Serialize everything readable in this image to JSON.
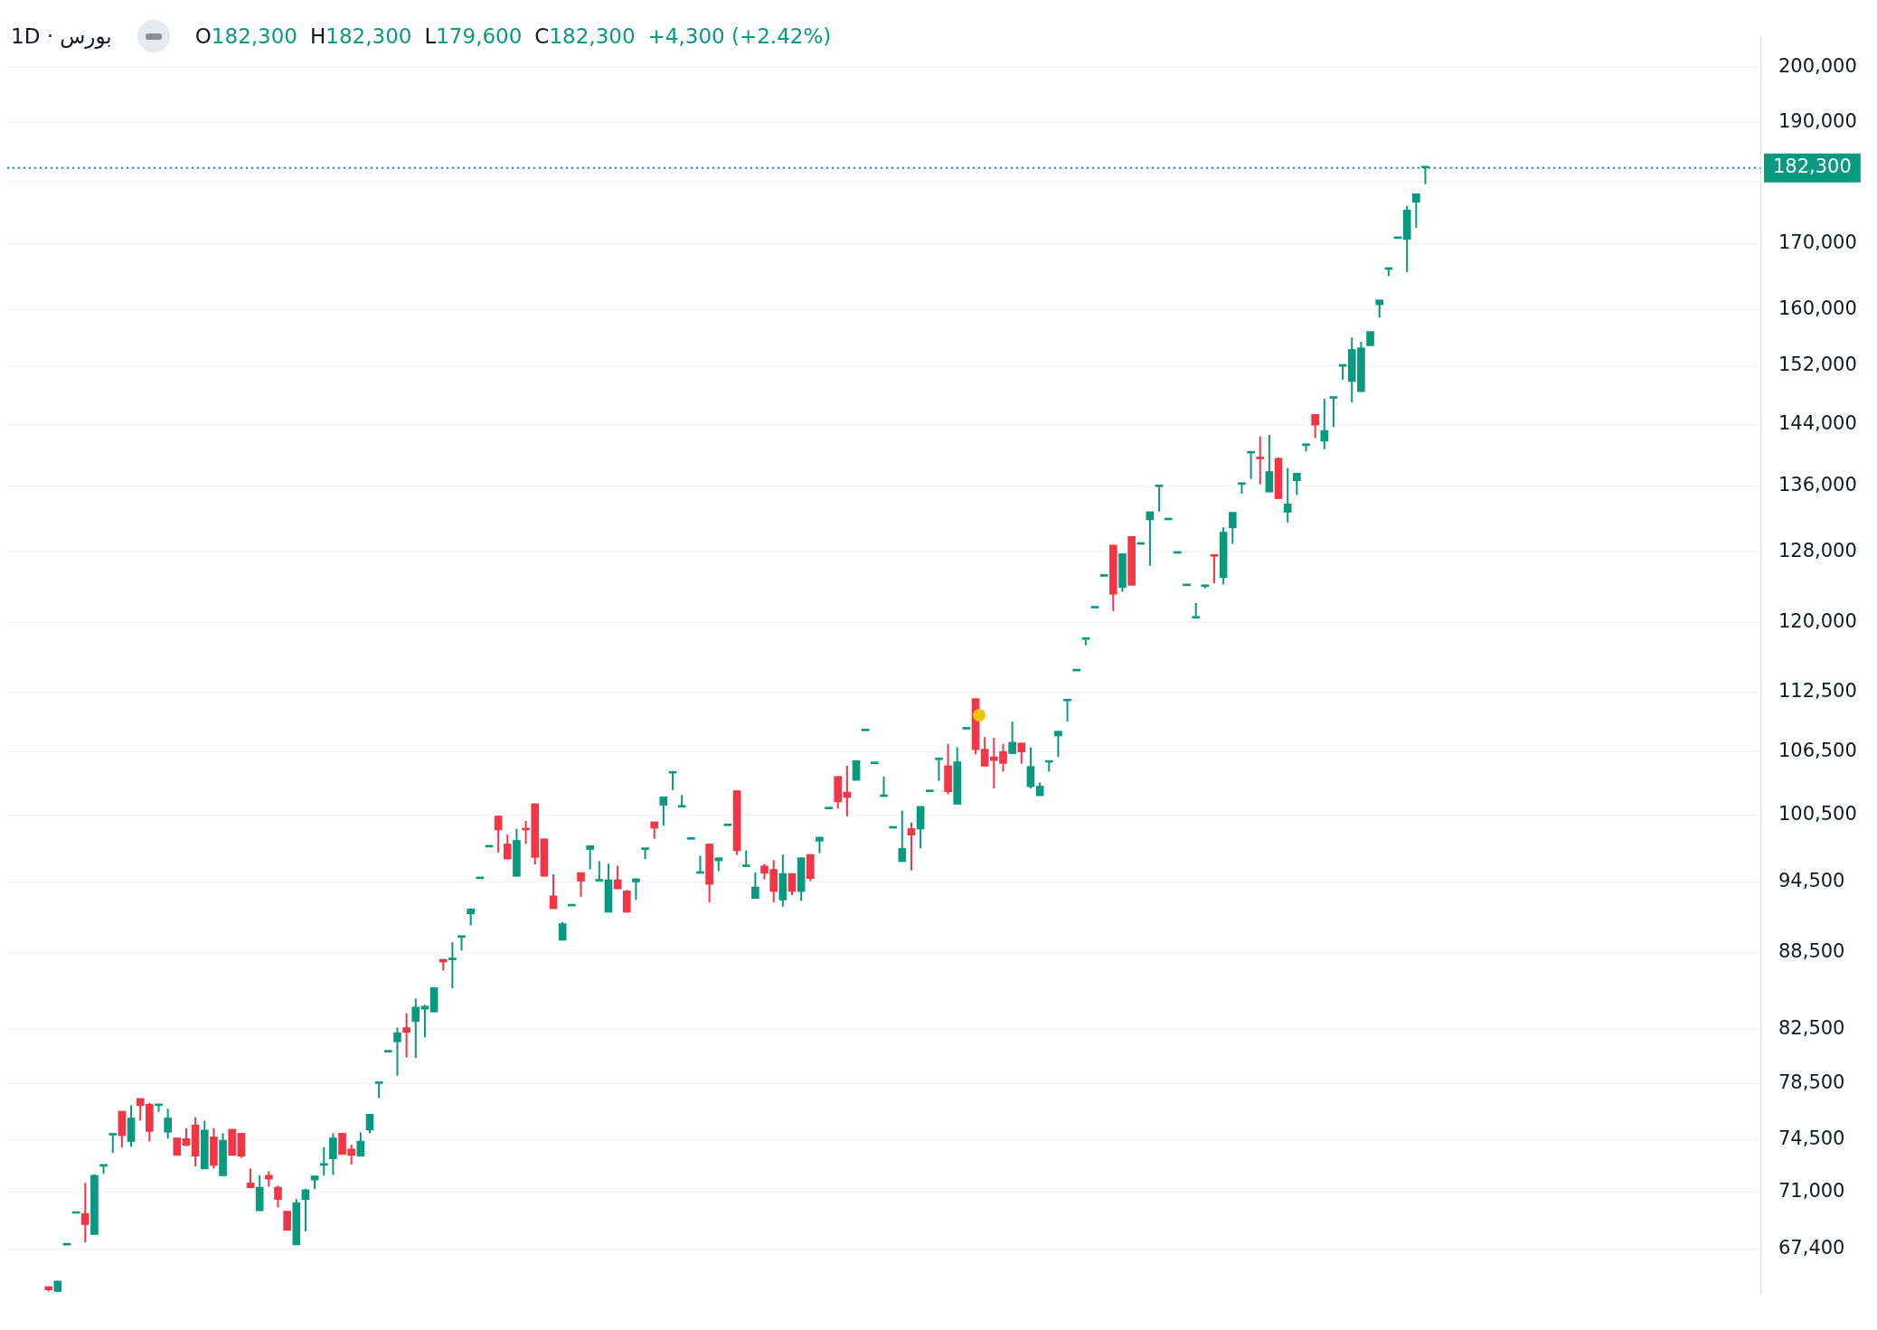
{
  "chart_data": {
    "type": "candlestick",
    "title": "بورس · 1D",
    "annotations": [
      "O182,300",
      "H182,300",
      "L179,600",
      "C182,300",
      "+4,300 (+2.42%)"
    ],
    "categories": [
      null,
      null,
      null,
      null,
      null,
      null,
      null,
      null,
      null,
      null,
      null,
      null,
      null,
      null,
      null,
      null,
      null,
      null,
      null,
      null,
      null,
      null,
      null,
      null,
      null,
      null,
      null,
      null,
      null,
      null,
      null,
      null,
      null,
      null,
      null,
      null,
      null,
      null,
      null,
      null,
      null,
      null,
      null,
      null,
      null,
      null,
      null,
      null,
      null,
      null,
      null,
      null,
      null,
      null,
      null,
      null,
      null,
      null,
      null,
      null,
      null,
      null,
      null,
      null,
      null,
      null,
      null,
      null,
      null,
      null,
      null,
      null,
      null,
      null,
      null,
      null,
      null,
      null,
      null,
      null,
      null,
      null,
      null,
      null,
      null,
      null,
      null,
      null,
      null,
      null,
      null,
      null,
      null,
      null,
      null,
      null,
      null,
      null,
      null,
      null,
      null,
      null,
      null,
      null,
      null,
      null,
      null,
      null,
      null,
      null,
      null,
      null,
      null,
      null,
      null,
      null,
      null,
      null,
      null,
      null,
      null,
      null,
      null,
      null,
      null,
      null,
      null,
      null,
      null,
      null,
      null,
      null,
      null,
      null,
      null,
      null,
      null,
      null,
      null,
      null,
      null,
      null,
      null,
      null,
      null,
      null,
      null,
      null,
      null,
      null,
      null,
      null,
      null,
      null,
      null,
      null,
      null,
      null,
      null,
      null,
      null,
      null,
      null,
      null,
      null,
      null,
      null,
      null,
      null,
      null,
      null,
      null,
      null,
      null,
      null,
      null,
      null,
      null,
      null,
      null,
      null,
      null,
      null,
      null,
      null,
      null,
      null,
      null,
      null,
      null,
      null
    ],
    "ohlc": [
      null,
      null,
      null,
      null,
      [
        65100,
        65130,
        64800,
        64900
      ],
      [
        64800,
        65440,
        64800,
        65440
      ],
      [
        67630,
        67630,
        67630,
        67630
      ],
      [
        69640,
        69640,
        69640,
        69640
      ],
      [
        69630,
        71620,
        67800,
        68930
      ],
      [
        68290,
        72200,
        68290,
        72130
      ],
      [
        72730,
        72730,
        72210,
        72730
      ],
      [
        74840,
        74840,
        73630,
        74840
      ],
      [
        76510,
        76510,
        73990,
        74800
      ],
      [
        74400,
        76930,
        74040,
        76030
      ],
      [
        77410,
        77410,
        75850,
        76900
      ],
      [
        77000,
        77100,
        74400,
        75100
      ],
      [
        76900,
        76900,
        76450,
        76900
      ],
      [
        75040,
        76690,
        74600,
        76030
      ],
      [
        74650,
        74650,
        73460,
        73460
      ],
      [
        74600,
        75320,
        74080,
        74140
      ],
      [
        75550,
        76090,
        72720,
        73410
      ],
      [
        72550,
        75850,
        72550,
        75190
      ],
      [
        74720,
        75320,
        72570,
        72790
      ],
      [
        72090,
        74970,
        72090,
        74490
      ],
      [
        75250,
        75250,
        73460,
        73460
      ],
      [
        74970,
        74970,
        73290,
        73410
      ],
      [
        71620,
        72570,
        71300,
        71300
      ],
      [
        69800,
        72130,
        69800,
        71340
      ],
      [
        72130,
        72400,
        71370,
        71870
      ],
      [
        71340,
        71440,
        70020,
        70530
      ],
      [
        69780,
        69780,
        68560,
        68560
      ],
      [
        67650,
        70560,
        67650,
        70330
      ],
      [
        70530,
        71240,
        68500,
        71180
      ],
      [
        71810,
        72080,
        71210,
        72080
      ],
      [
        72790,
        74020,
        72090,
        72790
      ],
      [
        73230,
        74970,
        72150,
        74650
      ],
      [
        74970,
        74970,
        73520,
        73520
      ],
      [
        73890,
        74180,
        72840,
        73460
      ],
      [
        73410,
        75030,
        73410,
        74430
      ],
      [
        75190,
        76300,
        74970,
        76300
      ],
      [
        78480,
        78480,
        77430,
        78480
      ],
      [
        80780,
        80780,
        80780,
        80780
      ],
      [
        81550,
        82630,
        79040,
        82240
      ],
      [
        82630,
        83720,
        80380,
        82260
      ],
      [
        83090,
        84870,
        80350,
        84200
      ],
      [
        84040,
        84380,
        81880,
        84270
      ],
      [
        83820,
        85720,
        83820,
        85720
      ],
      [
        87990,
        87990,
        87080,
        87760
      ],
      [
        87940,
        89380,
        85670,
        88100
      ],
      [
        89780,
        89780,
        88690,
        89780
      ],
      [
        91750,
        92160,
        90780,
        92160
      ],
      [
        94760,
        94760,
        94760,
        94760
      ],
      [
        97560,
        97560,
        97560,
        97560
      ],
      [
        100390,
        100390,
        97080,
        99110
      ],
      [
        97840,
        98690,
        96490,
        96490
      ],
      [
        94970,
        99230,
        94970,
        98180
      ],
      [
        99270,
        99940,
        97840,
        99110
      ],
      [
        101530,
        101530,
        96020,
        96630
      ],
      [
        98310,
        98310,
        94970,
        94970
      ],
      [
        93280,
        95150,
        92180,
        92180
      ],
      [
        89540,
        91070,
        89540,
        90920
      ],
      [
        92410,
        92410,
        92410,
        92410
      ],
      [
        95300,
        95300,
        93200,
        94550
      ],
      [
        97340,
        97700,
        95580,
        97700
      ],
      [
        94550,
        96310,
        94550,
        94550
      ],
      [
        91880,
        96080,
        91880,
        94670
      ],
      [
        94670,
        95910,
        93880,
        93880
      ],
      [
        93700,
        93790,
        91880,
        91880
      ],
      [
        94470,
        94760,
        92920,
        94760
      ],
      [
        97340,
        97340,
        96490,
        97340
      ],
      [
        99860,
        99860,
        98310,
        99270
      ],
      [
        101390,
        102180,
        99500,
        102180
      ],
      [
        104430,
        104430,
        102840,
        104430
      ],
      [
        101210,
        102350,
        101210,
        101210
      ],
      [
        98260,
        98260,
        98260,
        98260
      ],
      [
        95230,
        96790,
        95230,
        95230
      ],
      [
        97840,
        97840,
        92710,
        94270
      ],
      [
        96330,
        96610,
        95420,
        96610
      ],
      [
        99500,
        99500,
        99500,
        99500
      ],
      [
        102760,
        102760,
        96850,
        97230
      ],
      [
        95820,
        97260,
        95820,
        95820
      ],
      [
        93060,
        95300,
        93060,
        94040
      ],
      [
        95880,
        96060,
        94700,
        95240
      ],
      [
        95580,
        96400,
        92710,
        93650
      ],
      [
        92920,
        96900,
        92360,
        95220
      ],
      [
        95220,
        95220,
        93340,
        93650
      ],
      [
        93650,
        96610,
        92850,
        96610
      ],
      [
        96900,
        96900,
        94550,
        94780
      ],
      [
        98100,
        98460,
        97010,
        98460
      ],
      [
        101050,
        101050,
        101050,
        101050
      ],
      [
        104120,
        104120,
        101080,
        101710
      ],
      [
        102630,
        105150,
        100370,
        102120
      ],
      [
        103740,
        105640,
        103740,
        105640
      ],
      [
        108580,
        108580,
        108580,
        108580
      ],
      [
        105340,
        105340,
        105340,
        105340
      ],
      [
        102200,
        104120,
        102200,
        102200
      ],
      [
        99270,
        99270,
        99270,
        99270
      ],
      [
        96260,
        100890,
        96260,
        97440
      ],
      [
        99240,
        99800,
        95490,
        98640
      ],
      [
        99190,
        101290,
        97460,
        101290
      ],
      [
        102660,
        102660,
        102660,
        102660
      ],
      [
        105730,
        105730,
        103690,
        105730
      ],
      [
        105150,
        107280,
        102420,
        102660
      ],
      [
        101480,
        106950,
        101480,
        105530
      ],
      [
        108750,
        108750,
        108750,
        108750
      ],
      [
        111850,
        111850,
        106260,
        106710
      ],
      [
        106760,
        107960,
        105100,
        105100
      ],
      [
        106010,
        107880,
        102980,
        105650
      ],
      [
        106540,
        107280,
        104570,
        105370
      ],
      [
        106330,
        109500,
        106330,
        107450
      ],
      [
        107370,
        107370,
        105340,
        106490
      ],
      [
        103140,
        106950,
        102980,
        105080
      ],
      [
        102280,
        103520,
        102280,
        103190
      ],
      [
        105480,
        105480,
        104570,
        105480
      ],
      [
        108070,
        108550,
        106000,
        108550
      ],
      [
        111610,
        111610,
        109520,
        111610
      ],
      [
        114730,
        114730,
        114730,
        114730
      ],
      [
        118110,
        118110,
        117470,
        118110
      ],
      [
        121570,
        121570,
        121570,
        121570
      ],
      [
        125170,
        125170,
        125170,
        125170
      ],
      [
        128830,
        128830,
        121240,
        123120
      ],
      [
        123890,
        127810,
        123410,
        127810
      ],
      [
        129860,
        129860,
        124140,
        124140
      ],
      [
        128920,
        128920,
        128920,
        128920
      ],
      [
        131850,
        132850,
        126400,
        132850
      ],
      [
        135940,
        135940,
        132870,
        135940
      ],
      [
        131850,
        131850,
        131850,
        131850
      ],
      [
        127860,
        127860,
        127860,
        127860
      ],
      [
        124090,
        124090,
        124090,
        124090
      ],
      [
        120440,
        122140,
        120440,
        120440
      ],
      [
        124000,
        124000,
        123800,
        124000
      ],
      [
        127650,
        127650,
        124370,
        127500
      ],
      [
        125030,
        130950,
        124240,
        130380
      ],
      [
        130880,
        132770,
        128990,
        132770
      ],
      [
        136220,
        136220,
        135060,
        136220
      ],
      [
        140200,
        140200,
        136910,
        140200
      ],
      [
        139650,
        142380,
        136220,
        139470
      ],
      [
        135270,
        142580,
        135270,
        137850
      ],
      [
        139540,
        139650,
        134450,
        134450
      ],
      [
        132780,
        138290,
        131540,
        133800
      ],
      [
        136690,
        137640,
        134900,
        137640
      ],
      [
        141190,
        141190,
        140420,
        141190
      ],
      [
        145290,
        145290,
        142150,
        143860
      ],
      [
        141760,
        147390,
        140710,
        143160
      ],
      [
        147460,
        147460,
        143630,
        147460
      ],
      [
        151870,
        151870,
        149980,
        151870
      ],
      [
        149760,
        155960,
        146920,
        154240
      ],
      [
        148360,
        155340,
        148360,
        154480
      ],
      [
        154770,
        156810,
        154770,
        156810
      ],
      [
        160720,
        161440,
        158840,
        161440
      ],
      [
        166040,
        166040,
        165020,
        166040
      ],
      [
        170820,
        170820,
        170820,
        170820
      ],
      [
        170690,
        176040,
        165620,
        175350
      ],
      [
        176630,
        178000,
        172520,
        178000
      ],
      [
        182300,
        182300,
        179600,
        182300
      ],
      null,
      null,
      null,
      null,
      null,
      null,
      null,
      null,
      null,
      null,
      null,
      null,
      null,
      null,
      null,
      null,
      null,
      null,
      null,
      null,
      null,
      null,
      null,
      null,
      null,
      null,
      null,
      null,
      null,
      null,
      null,
      null,
      null,
      null,
      null,
      null
    ],
    "log": "y",
    "ylim": [
      64700,
      205700
    ],
    "yticks": [
      {
        "value": 67400,
        "label": "67,400"
      },
      {
        "value": 71000,
        "label": "71,000"
      },
      {
        "value": 74500,
        "label": "74,500"
      },
      {
        "value": 78500,
        "label": "78,500"
      },
      {
        "value": 82500,
        "label": "82,500"
      },
      {
        "value": 88500,
        "label": "88,500"
      },
      {
        "value": 94500,
        "label": "94,500"
      },
      {
        "value": 100500,
        "label": "100,500"
      },
      {
        "value": 106500,
        "label": "106,500"
      },
      {
        "value": 112500,
        "label": "112,500"
      },
      {
        "value": 120000,
        "label": "120,000"
      },
      {
        "value": 128000,
        "label": "128,000"
      },
      {
        "value": 136000,
        "label": "136,000"
      },
      {
        "value": 144000,
        "label": "144,000"
      },
      {
        "value": 152000,
        "label": "152,000"
      },
      {
        "value": 160000,
        "label": "160,000"
      },
      {
        "value": 170000,
        "label": "170,000"
      },
      {
        "value": 180000,
        "label": null
      },
      {
        "value": 190000,
        "label": "190,000"
      },
      {
        "value": 200000,
        "label": "200,000"
      }
    ],
    "ref_lines": [
      {
        "axis": "y",
        "value": 182300,
        "label": "182,300",
        "color": "#089981",
        "line_style": "dotted"
      }
    ],
    "grid": "y",
    "legend": false,
    "tick_labels": "y"
  }
}
